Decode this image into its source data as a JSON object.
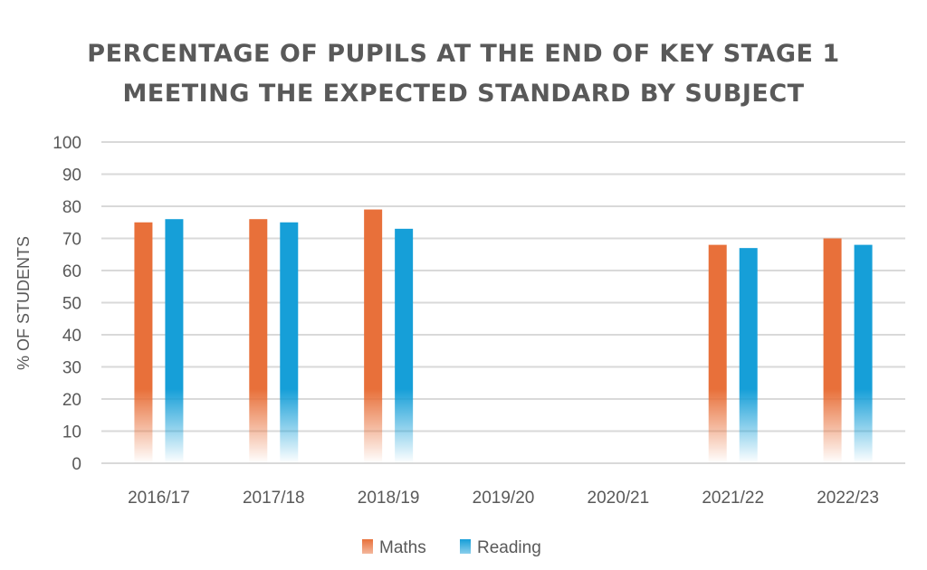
{
  "chart_data": {
    "type": "bar",
    "title_lines": [
      "PERCENTAGE OF PUPILS AT THE END OF KEY STAGE 1",
      "MEETING THE EXPECTED STANDARD BY SUBJECT"
    ],
    "xlabel": "",
    "ylabel": "% OF STUDENTS",
    "ylim": [
      0,
      100
    ],
    "yticks": [
      0,
      10,
      20,
      30,
      40,
      50,
      60,
      70,
      80,
      90,
      100
    ],
    "grid": true,
    "legend_position": "bottom",
    "categories": [
      "2016/17",
      "2017/18",
      "2018/19",
      "2019/20",
      "2020/21",
      "2021/22",
      "2022/23"
    ],
    "series": [
      {
        "name": "Maths",
        "color": "#E8703A",
        "values": [
          75,
          76,
          79,
          null,
          null,
          68,
          70
        ]
      },
      {
        "name": "Reading",
        "color": "#169FD8",
        "values": [
          76,
          75,
          73,
          null,
          null,
          67,
          68
        ]
      }
    ]
  }
}
